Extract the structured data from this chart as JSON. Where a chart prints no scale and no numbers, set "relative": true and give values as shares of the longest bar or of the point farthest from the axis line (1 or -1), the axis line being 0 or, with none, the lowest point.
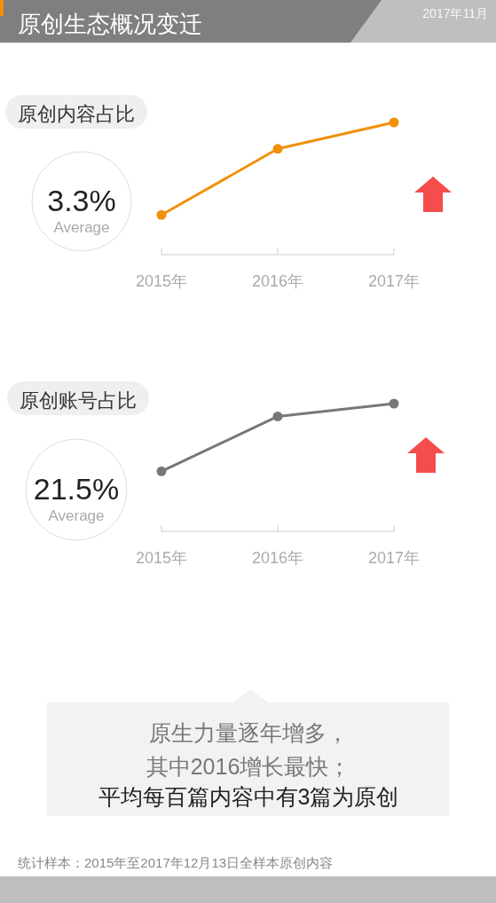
{
  "chart_data": [
    {
      "type": "other",
      "title": "原创生态概况变迁",
      "annotations": [
        "2017年11月"
      ]
    },
    {
      "type": "line",
      "title": "原创内容占比",
      "categories": [
        "2015年",
        "2016年",
        "2017年"
      ],
      "values": [
        0.3,
        0.8,
        1
      ],
      "color": "#f0900a",
      "relative": true,
      "marker": "circle",
      "annotations": [
        "3.3%",
        "Average"
      ]
    },
    {
      "type": "line",
      "title": "原创账号占比",
      "categories": [
        "2015年",
        "2016年",
        "2017年"
      ],
      "values": [
        0.47,
        0.9,
        1
      ],
      "color": "#777777",
      "relative": true,
      "marker": "circle",
      "annotations": [
        "21.5%",
        "Average"
      ]
    },
    {
      "type": "other",
      "annotations": [
        "原生力量逐年增多，",
        "其中2016增长最快；",
        "平均每百篇内容中有3篇为原创",
        "统计样本：2015年至2017年12月13日全样本原创内容"
      ]
    }
  ]
}
